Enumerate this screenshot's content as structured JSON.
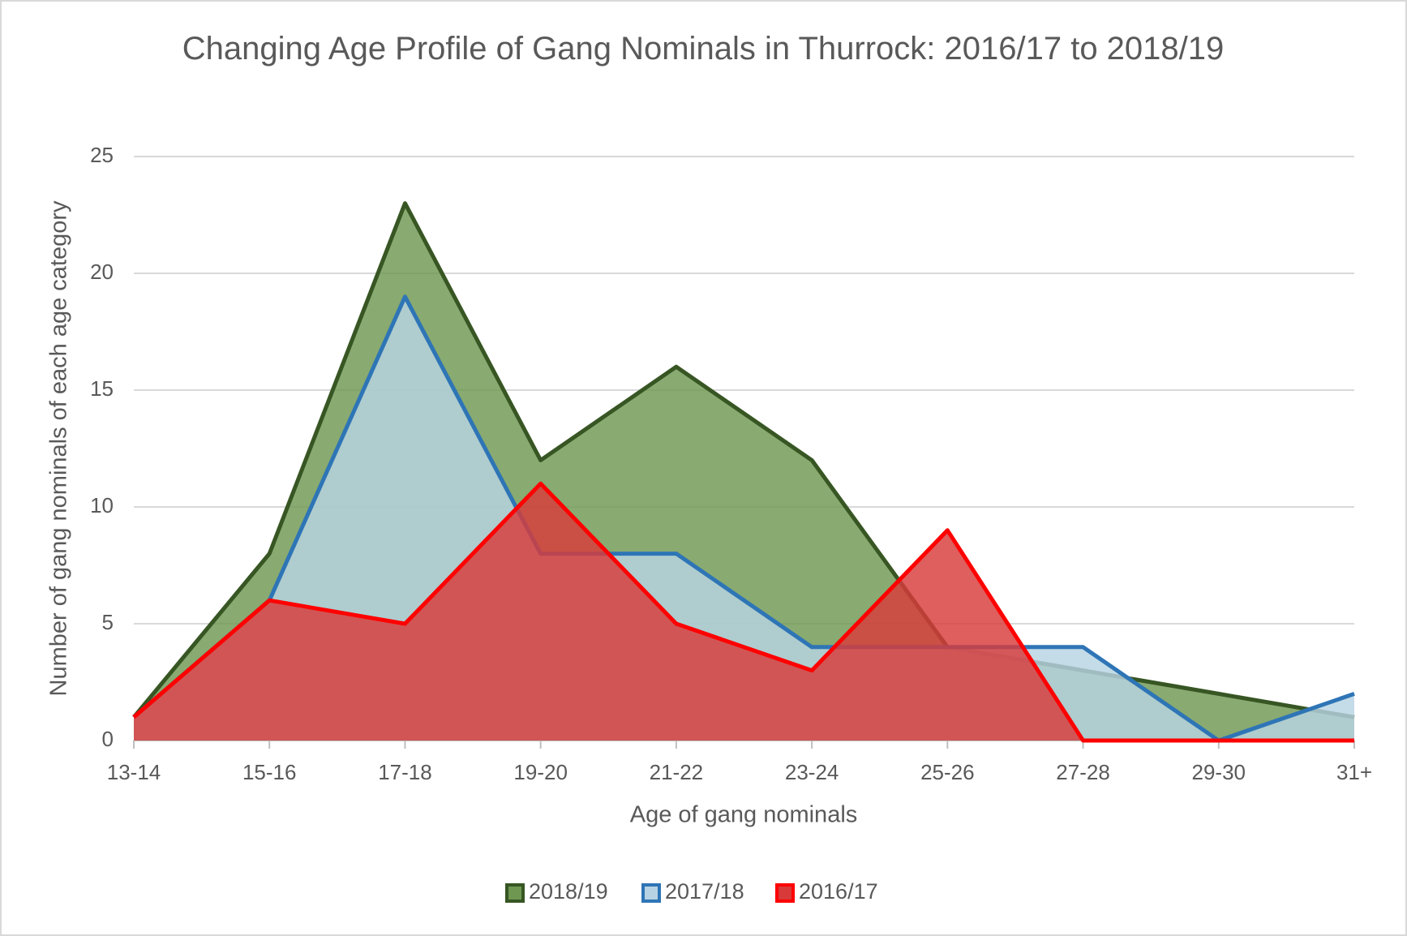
{
  "chart_data": {
    "type": "area",
    "title": "Changing Age Profile of Gang Nominals in Thurrock: 2016/17 to 2018/19",
    "x_label": "Age of gang nominals",
    "y_label": "Number of gang nominals of each age category",
    "categories": [
      "13-14",
      "15-16",
      "17-18",
      "19-20",
      "21-22",
      "23-24",
      "25-26",
      "27-28",
      "29-30",
      "31+"
    ],
    "series": [
      {
        "name": "2018/19",
        "color": "#375623",
        "fill": "#6f9752",
        "values": [
          1,
          8,
          23,
          12,
          16,
          12,
          4,
          3,
          2,
          1
        ]
      },
      {
        "name": "2017/18",
        "color": "#2e75b6",
        "fill": "#b7d3e3",
        "values": [
          1,
          6,
          19,
          8,
          8,
          4,
          4,
          4,
          0,
          2
        ]
      },
      {
        "name": "2016/17",
        "color": "#ff0000",
        "fill": "#d83a3a",
        "values": [
          1,
          6,
          5,
          11,
          5,
          3,
          9,
          0,
          0,
          0
        ]
      }
    ],
    "ylim": [
      0,
      25
    ],
    "yticks": [
      0,
      5,
      10,
      15,
      20,
      25
    ],
    "grid": true,
    "legend": "bottom"
  }
}
